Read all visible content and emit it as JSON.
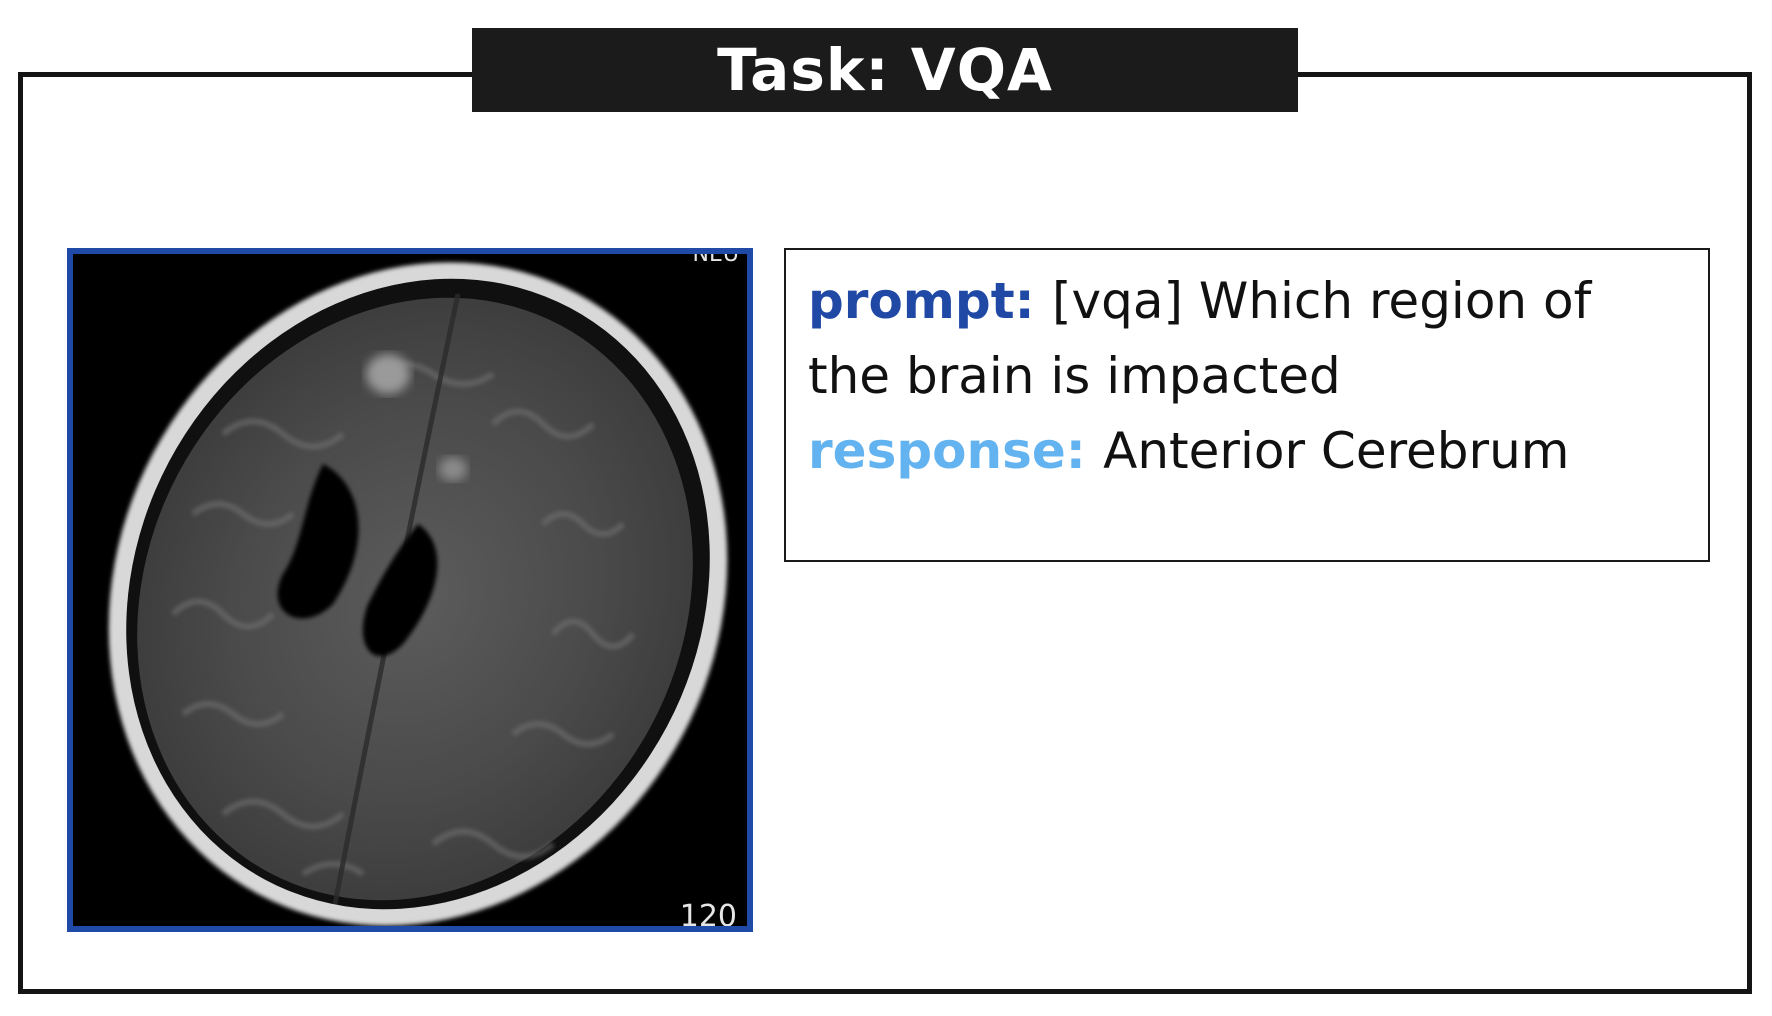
{
  "title": "Task: VQA",
  "image": {
    "corner_label_top": "NEU",
    "corner_label_bottom": "120"
  },
  "qa": {
    "prompt_key": "prompt:",
    "prompt_text": "[vqa] Which region of the brain is impacted",
    "response_key": "response:",
    "response_text": "Anterior Cerebrum"
  },
  "colors": {
    "banner_bg": "#1b1b1b",
    "image_border": "#1f4aa8",
    "prompt_key": "#2049a6",
    "response_key": "#62b3f0"
  }
}
